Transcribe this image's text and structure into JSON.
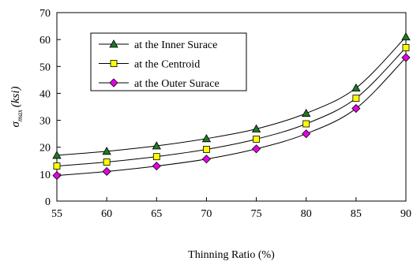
{
  "chart_data": {
    "type": "line",
    "title": "",
    "xlabel": "Thinning Ratio (%)",
    "ylabel_symbol": "σ",
    "ylabel_subscript": "max",
    "ylabel_unit": "(ksi)",
    "x": [
      55,
      60,
      65,
      70,
      75,
      80,
      85,
      90
    ],
    "xlim": [
      55,
      90
    ],
    "ylim": [
      0,
      70
    ],
    "yticks": [
      0,
      10,
      20,
      30,
      40,
      50,
      60,
      70
    ],
    "grid": false,
    "legend_position": "top-left",
    "series": [
      {
        "name": "at the Inner Surace",
        "marker": "triangle",
        "color": "#1f7a1f",
        "values": [
          17,
          18.5,
          20.5,
          23.2,
          26.8,
          32.6,
          42,
          61
        ]
      },
      {
        "name": "at the Centroid",
        "marker": "square",
        "color": "#ffff00",
        "values": [
          13,
          14.5,
          16.5,
          19.2,
          23,
          28.7,
          38.2,
          57
        ]
      },
      {
        "name": "at the Outer Surace",
        "marker": "diamond",
        "color": "#e600e6",
        "values": [
          9.5,
          11,
          13,
          15.6,
          19.4,
          25,
          34.4,
          53.3
        ]
      }
    ]
  }
}
